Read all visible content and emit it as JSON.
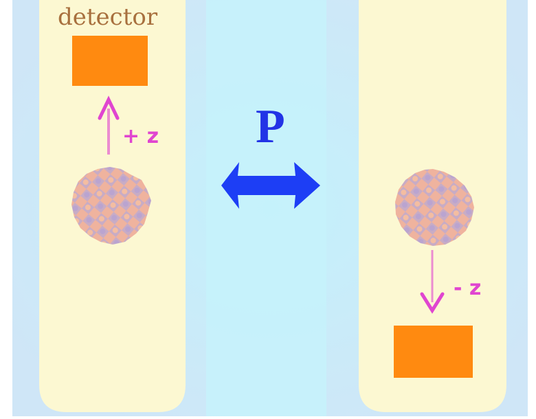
{
  "detector": {
    "label": "detector"
  },
  "left_panel": {
    "arrow_label": "+ z"
  },
  "right_panel": {
    "arrow_label": "- z"
  },
  "symbol": {
    "label": "P"
  },
  "colors": {
    "background": "#cfe7f8",
    "center_band": "#c8f3fb",
    "panel": "#fdf9d6",
    "detector": "#ff8a10",
    "arrow": "#e045d0",
    "nucleus_a": "#b8a0c8",
    "nucleus_b": "#f0aa95",
    "parity_arrow": "#1d3ef5",
    "parity_text": "#2233e6",
    "detector_text": "#a8703e"
  }
}
